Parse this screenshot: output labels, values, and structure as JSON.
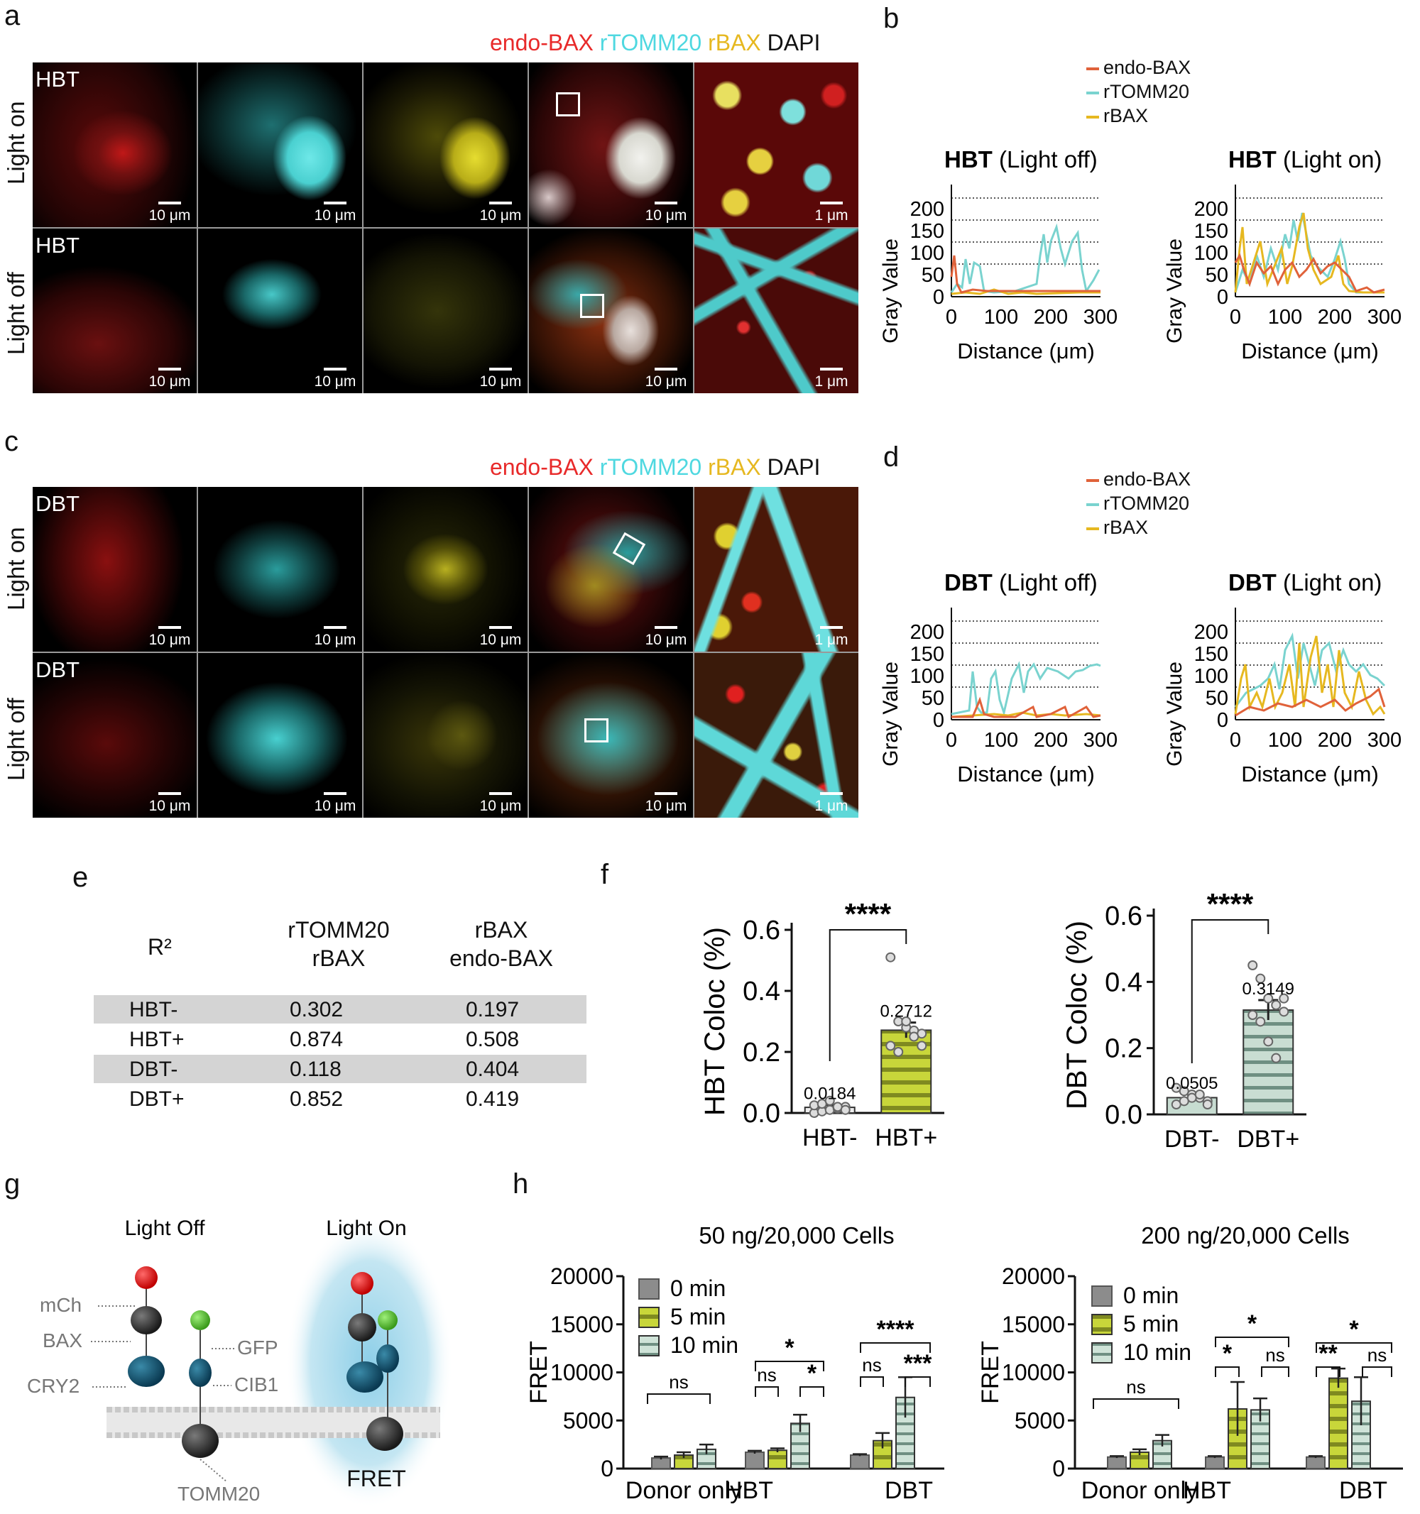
{
  "panels": {
    "a": "a",
    "b": "b",
    "c": "c",
    "d": "d",
    "e": "e",
    "f": "f",
    "g": "g",
    "h": "h"
  },
  "colors": {
    "red": "#e02020",
    "cyan": "#5ed8d8",
    "yellow": "#e6c02a",
    "white": "#111111",
    "endo_line": "#e0623a",
    "tomm_line": "#7ad3cf",
    "rbax_line": "#e6b820"
  },
  "channel_title": [
    {
      "text": "endo-BAX",
      "color": "#e82a2a"
    },
    {
      "text": "rTOMM20",
      "color": "#4fd8e0"
    },
    {
      "text": "rBAX",
      "color": "#e6b820"
    },
    {
      "text": "DAPI",
      "color": "#111111"
    }
  ],
  "panel_a": {
    "rows": [
      {
        "label": "Light on",
        "tag": "HBT"
      },
      {
        "label": "Light off",
        "tag": "HBT"
      }
    ],
    "scalebars": [
      "10 μm",
      "10 μm",
      "10 μm",
      "10 μm",
      "1 μm"
    ]
  },
  "panel_c": {
    "rows": [
      {
        "label": "Light on",
        "tag": "DBT"
      },
      {
        "label": "Light off",
        "tag": "DBT"
      }
    ],
    "scalebars": [
      "10 μm",
      "10 μm",
      "10 μm",
      "10 μm",
      "1 μm"
    ]
  },
  "line_legend": [
    "endo-BAX",
    "rTOMM20",
    "rBAX"
  ],
  "profile_plots": {
    "ylabel": "Gray Value",
    "xlabel": "Distance (μm)",
    "yticks": [
      "0",
      "50",
      "100",
      "150",
      "200"
    ],
    "xticks": [
      "0",
      "100",
      "200",
      "300"
    ],
    "b_left": {
      "title_bold": "HBT",
      "title_rest": " (Light off)"
    },
    "b_right": {
      "title_bold": "HBT",
      "title_rest": " (Light on)"
    },
    "d_left": {
      "title_bold": "DBT",
      "title_rest": " (Light off)"
    },
    "d_right": {
      "title_bold": "DBT",
      "title_rest": " (Light on)"
    }
  },
  "table_e": {
    "header": {
      "r2": "R²",
      "col1_line1": "rTOMM20",
      "col1_line2": "rBAX",
      "col2_line1": "rBAX",
      "col2_line2": "endo-BAX"
    },
    "rows": [
      {
        "name": "HBT-",
        "v1": "0.302",
        "v2": "0.197",
        "shaded": true
      },
      {
        "name": "HBT+",
        "v1": "0.874",
        "v2": "0.508",
        "shaded": false
      },
      {
        "name": "DBT-",
        "v1": "0.118",
        "v2": "0.404",
        "shaded": true
      },
      {
        "name": "DBT+",
        "v1": "0.852",
        "v2": "0.419",
        "shaded": false
      }
    ]
  },
  "schematic_g": {
    "light_off": "Light Off",
    "light_on": "Light On",
    "labels": {
      "mch": "mCh",
      "bax": "BAX",
      "cry2": "CRY2",
      "gfp": "GFP",
      "cib1": "CIB1",
      "tomm20": "TOMM20",
      "fret": "FRET"
    }
  },
  "chart_data": [
    {
      "type": "bar",
      "id": "f-hbt",
      "ylabel": "HBT Coloc (%)",
      "categories": [
        "HBT-",
        "HBT+"
      ],
      "values": [
        0.0184,
        0.2712
      ],
      "value_labels": [
        "0.0184",
        "0.2712"
      ],
      "errors": [
        0.008,
        0.025
      ],
      "points": [
        [
          0.0,
          0.005,
          0.01,
          0.015,
          0.02,
          0.025,
          0.03,
          0.04,
          0.02,
          0.01
        ],
        [
          0.51,
          0.3,
          0.28,
          0.27,
          0.26,
          0.22,
          0.2,
          0.3,
          0.25,
          0.22
        ]
      ],
      "ylim": [
        0,
        0.6
      ],
      "yticks": [
        "0.0",
        "0.2",
        "0.4",
        "0.6"
      ],
      "significance": "****"
    },
    {
      "type": "bar",
      "id": "f-dbt",
      "ylabel": "DBT Coloc (%)",
      "categories": [
        "DBT-",
        "DBT+"
      ],
      "values": [
        0.0505,
        0.3149
      ],
      "value_labels": [
        "0.0505",
        "0.3149"
      ],
      "errors": [
        0.01,
        0.03
      ],
      "points": [
        [
          0.08,
          0.07,
          0.06,
          0.05,
          0.04,
          0.03,
          0.04,
          0.05,
          0.06,
          0.03
        ],
        [
          0.45,
          0.41,
          0.35,
          0.33,
          0.31,
          0.3,
          0.28,
          0.22,
          0.17,
          0.35
        ]
      ],
      "ylim": [
        0,
        0.6
      ],
      "yticks": [
        "0.0",
        "0.2",
        "0.4",
        "0.6"
      ],
      "significance": "****"
    },
    {
      "type": "bar",
      "id": "h-50",
      "title": "50 ng/20,000 Cells",
      "ylabel": "FRET",
      "categories": [
        "Donor only",
        "HBT",
        "DBT"
      ],
      "series": [
        {
          "name": "0 min",
          "values": [
            1100,
            1700,
            1400
          ],
          "errors": [
            150,
            150,
            100
          ]
        },
        {
          "name": "5 min",
          "values": [
            1400,
            1900,
            2900
          ],
          "errors": [
            300,
            200,
            800
          ]
        },
        {
          "name": "10 min",
          "values": [
            2000,
            4700,
            7400
          ],
          "errors": [
            500,
            900,
            2100
          ]
        }
      ],
      "ylim": [
        0,
        20000
      ],
      "yticks": [
        "0",
        "5000",
        "10000",
        "15000",
        "20000"
      ],
      "annotations": [
        "ns",
        "ns",
        "*",
        "*",
        "ns",
        "***",
        "****"
      ]
    },
    {
      "type": "bar",
      "id": "h-200",
      "title": "200 ng/20,000 Cells",
      "ylabel": "FRET",
      "categories": [
        "Donor only",
        "HBT",
        "DBT"
      ],
      "series": [
        {
          "name": "0 min",
          "values": [
            1200,
            1200,
            1200
          ],
          "errors": [
            100,
            100,
            100
          ]
        },
        {
          "name": "5 min",
          "values": [
            1700,
            6200,
            9400
          ],
          "errors": [
            300,
            2800,
            1000
          ]
        },
        {
          "name": "10 min",
          "values": [
            2900,
            6100,
            7000
          ],
          "errors": [
            600,
            1200,
            2500
          ]
        }
      ],
      "ylim": [
        0,
        20000
      ],
      "yticks": [
        "0",
        "5000",
        "10000",
        "15000",
        "20000"
      ],
      "annotations": [
        "ns",
        "*",
        "ns",
        "*",
        "**",
        "ns",
        "*"
      ]
    }
  ]
}
